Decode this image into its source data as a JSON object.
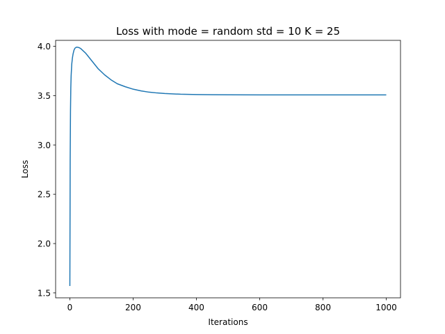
{
  "chart_data": {
    "type": "line",
    "title": "Loss with mode = random std = 10 K = 25",
    "xlabel": "Iterations",
    "ylabel": "Loss",
    "xlim": [
      -45,
      1045
    ],
    "ylim": [
      1.45,
      4.06
    ],
    "x_ticks": [
      0,
      200,
      400,
      600,
      800,
      1000
    ],
    "y_ticks": [
      1.5,
      2.0,
      2.5,
      3.0,
      3.5,
      4.0
    ],
    "x_tick_labels": [
      "0",
      "200",
      "400",
      "600",
      "800",
      "1000"
    ],
    "y_tick_labels": [
      "1.5",
      "2.0",
      "2.5",
      "3.0",
      "3.5",
      "4.0"
    ],
    "grid": false,
    "legend": "none",
    "series": [
      {
        "color": "#1f77b4",
        "x": [
          0,
          1,
          2,
          3,
          4,
          6,
          8,
          10,
          13,
          16,
          20,
          25,
          30,
          35,
          40,
          50,
          60,
          75,
          90,
          110,
          130,
          150,
          175,
          200,
          225,
          250,
          275,
          300,
          350,
          400,
          450,
          500,
          600,
          700,
          800,
          900,
          1000
        ],
        "y": [
          1.57,
          2.85,
          3.35,
          3.58,
          3.7,
          3.82,
          3.88,
          3.92,
          3.96,
          3.98,
          3.99,
          3.99,
          3.985,
          3.975,
          3.96,
          3.93,
          3.89,
          3.83,
          3.77,
          3.71,
          3.66,
          3.62,
          3.59,
          3.565,
          3.548,
          3.535,
          3.527,
          3.521,
          3.514,
          3.511,
          3.509,
          3.508,
          3.507,
          3.507,
          3.507,
          3.507,
          3.507
        ]
      }
    ]
  }
}
